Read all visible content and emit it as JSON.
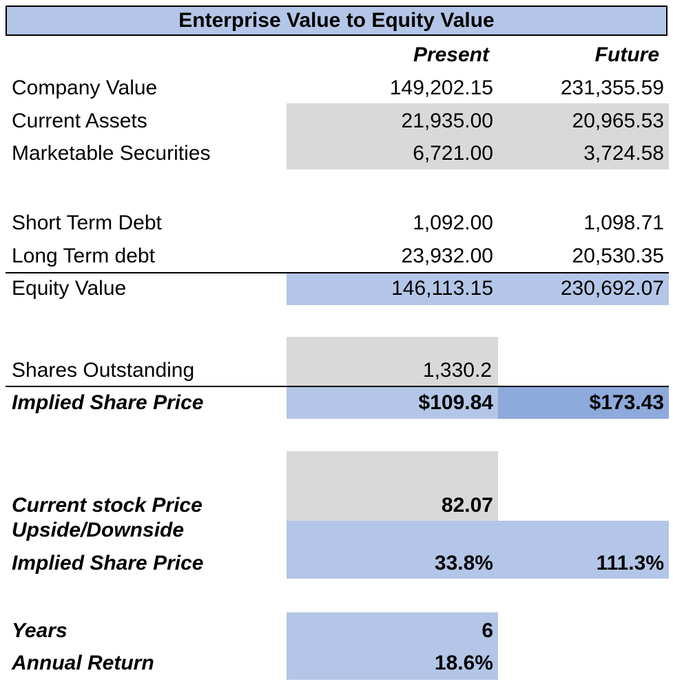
{
  "colors": {
    "header_bg": "#b4c6e7",
    "gray_fill": "#d9d9d9",
    "blue_fill": "#b4c6e7",
    "dark_blue_fill": "#8ea9db",
    "border": "#000000"
  },
  "title": "Enterprise Value to Equity Value",
  "columns": {
    "present": "Present",
    "future": "Future"
  },
  "rows": {
    "company_value": {
      "label": "Company Value",
      "present": "149,202.15",
      "future": "231,355.59"
    },
    "current_assets": {
      "label": "Current Assets",
      "present": "21,935.00",
      "future": "20,965.53"
    },
    "marketable_securities": {
      "label": "Marketable Securities",
      "present": "6,721.00",
      "future": "3,724.58"
    },
    "short_term_debt": {
      "label": "Short Term Debt",
      "present": "1,092.00",
      "future": "1,098.71"
    },
    "long_term_debt": {
      "label": "Long Term debt",
      "present": "23,932.00",
      "future": "20,530.35"
    },
    "equity_value": {
      "label": "Equity Value",
      "present": "146,113.15",
      "future": "230,692.07"
    },
    "shares_outstanding": {
      "label": "Shares Outstanding",
      "present": "1,330.2"
    },
    "implied_share_price": {
      "label": "Implied Share Price",
      "present": "$109.84",
      "future": "$173.43"
    },
    "current_stock_price": {
      "label": "Current stock Price",
      "present": "82.07"
    },
    "upside_downside": {
      "label_line1": "Upside/Downside",
      "label_line2": "Implied Share Price",
      "present": "33.8%",
      "future": "111.3%"
    },
    "years": {
      "label": "Years",
      "present": "6"
    },
    "annual_return": {
      "label": "Annual Return",
      "present": "18.6%"
    }
  }
}
